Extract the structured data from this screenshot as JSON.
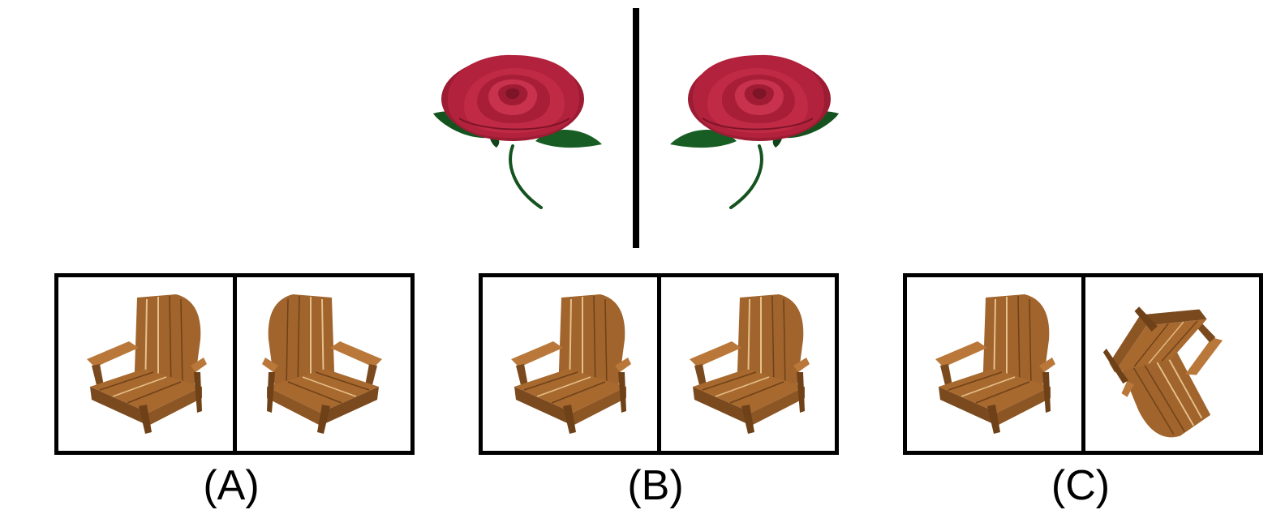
{
  "exemplar": {
    "subject_icon": "rose-icon",
    "relation": "mirror"
  },
  "options": [
    {
      "label": "(A)",
      "left_icon": "adirondack-chair-icon",
      "right_icon": "adirondack-chair-icon",
      "right_transform": "mirrored"
    },
    {
      "label": "(B)",
      "left_icon": "adirondack-chair-icon",
      "right_icon": "adirondack-chair-icon",
      "right_transform": "identical"
    },
    {
      "label": "(C)",
      "left_icon": "adirondack-chair-icon",
      "right_icon": "adirondack-chair-icon",
      "right_transform": "rotated"
    }
  ],
  "colors": {
    "rose_petal": "#b0203a",
    "rose_petal_dark": "#7e1428",
    "leaf": "#14531f",
    "wood": "#a0642c",
    "wood_dark": "#6e4118",
    "wood_light": "#c58a4a",
    "border": "#000000"
  }
}
